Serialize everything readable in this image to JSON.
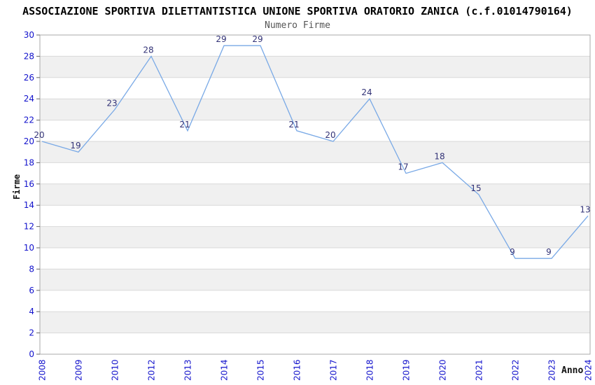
{
  "page": {
    "title": "ASSOCIAZIONE SPORTIVA DILETTANTISTICA UNIONE SPORTIVA ORATORIO ZANICA (c.f.01014790164)"
  },
  "colors": {
    "line": "#79a9e6",
    "tick_label_blue": "#1212cc",
    "point_label_navy": "#333377",
    "band_gray": "#f0f0f0",
    "band_white": "#ffffff",
    "grid": "#d9d9d9",
    "border": "#aaaaaa",
    "tick_mark": "#666666",
    "title_black": "#000000",
    "subtitle_gray": "#555555"
  },
  "chart_data": {
    "type": "line",
    "title": "Numero Firme",
    "xlabel": "Anno",
    "ylabel": "Firme",
    "categories": [
      "2008",
      "2009",
      "2010",
      "2012",
      "2013",
      "2014",
      "2015",
      "2016",
      "2017",
      "2018",
      "2019",
      "2020",
      "2021",
      "2022",
      "2023",
      "2024"
    ],
    "values": [
      20,
      19,
      23,
      28,
      21,
      29,
      29,
      21,
      20,
      24,
      17,
      18,
      15,
      9,
      9,
      13
    ],
    "point_labels": [
      "20",
      "19",
      "23",
      "28",
      "21",
      "29",
      "29",
      "21",
      "20",
      "24",
      "17",
      "18",
      "15",
      "9",
      "9",
      "13"
    ],
    "ylim": [
      0,
      30
    ],
    "ytick_step": 2,
    "grid": "horizontal-bands-alternating",
    "legend": "none",
    "x_tick_rotation": 90
  }
}
